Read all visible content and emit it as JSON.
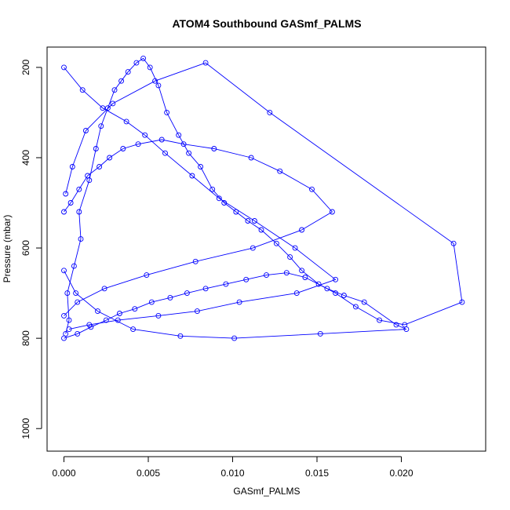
{
  "chart_data": {
    "type": "scatter",
    "title": "ATOM4 Southbound GASmf_PALMS",
    "xlabel": "GASmf_PALMS",
    "ylabel": "Pressure (mbar)",
    "xlim": [
      -0.001,
      0.025
    ],
    "ylim": [
      1050,
      155
    ],
    "y_reversed": true,
    "xticks": [
      0.0,
      0.005,
      0.01,
      0.015,
      0.02
    ],
    "xtick_labels": [
      "0.000",
      "0.005",
      "0.010",
      "0.015",
      "0.020"
    ],
    "yticks": [
      200,
      400,
      600,
      800,
      1000
    ],
    "ytick_labels": [
      "200",
      "400",
      "600",
      "800",
      "1000"
    ],
    "grid": false,
    "legend": "none",
    "marker": "open-circle",
    "connect_points": true,
    "color": "#0000ff",
    "series": [
      {
        "x": [
          0.0001,
          0.0003,
          0.0002,
          0.0006,
          0.001,
          0.0009,
          0.0015,
          0.0019,
          0.0022,
          0.0026,
          0.003,
          0.0034,
          0.0038,
          0.0043,
          0.0047,
          0.0051,
          0.0056,
          0.0061,
          0.0068,
          0.0074,
          0.0081,
          0.0088,
          0.0095,
          0.0102,
          0.0109,
          0.0117,
          0.0126,
          0.0134,
          0.0141,
          0.0151,
          0.0161,
          0.0173,
          0.0187,
          0.0202,
          0.0236,
          0.0231,
          0.0122,
          0.0084,
          0.0054,
          0.0029,
          0.0013,
          0.0005,
          0.0001
        ],
        "y": [
          790,
          760,
          700,
          640,
          580,
          520,
          450,
          380,
          330,
          290,
          250,
          230,
          210,
          190,
          180,
          200,
          240,
          300,
          350,
          390,
          420,
          470,
          500,
          520,
          540,
          560,
          590,
          620,
          650,
          680,
          700,
          730,
          760,
          770,
          720,
          590,
          300,
          190,
          230,
          280,
          340,
          420,
          480
        ]
      },
      {
        "x": [
          0.0,
          0.0008,
          0.0016,
          0.0025,
          0.0033,
          0.0042,
          0.0052,
          0.0063,
          0.0073,
          0.0084,
          0.0096,
          0.0108,
          0.012,
          0.0132,
          0.0143,
          0.0156,
          0.0166,
          0.0178,
          0.0197,
          0.0203,
          0.0152,
          0.0101,
          0.0069,
          0.0041,
          0.002,
          0.0007,
          0.0
        ],
        "y": [
          800,
          790,
          775,
          760,
          745,
          735,
          720,
          710,
          700,
          690,
          680,
          670,
          660,
          655,
          665,
          690,
          705,
          720,
          770,
          780,
          790,
          800,
          795,
          780,
          740,
          700,
          650
        ]
      },
      {
        "x": [
          0.0,
          0.0004,
          0.0009,
          0.0014,
          0.0021,
          0.0027,
          0.0035,
          0.0044,
          0.0058,
          0.0071,
          0.0089,
          0.0111,
          0.0128,
          0.0147,
          0.0159,
          0.0141,
          0.0112,
          0.0078,
          0.0049,
          0.0024,
          0.0008,
          0.0
        ],
        "y": [
          520,
          500,
          470,
          440,
          420,
          400,
          380,
          370,
          360,
          370,
          380,
          400,
          430,
          470,
          520,
          560,
          600,
          630,
          660,
          690,
          720,
          750
        ]
      },
      {
        "x": [
          0.0,
          0.0011,
          0.0023,
          0.0037,
          0.0048,
          0.006,
          0.0076,
          0.0092,
          0.0113,
          0.0137,
          0.0161,
          0.0138,
          0.0104,
          0.0079,
          0.0056,
          0.0032,
          0.0015,
          0.0003
        ],
        "y": [
          200,
          250,
          290,
          320,
          350,
          390,
          440,
          490,
          540,
          600,
          670,
          700,
          720,
          740,
          750,
          760,
          770,
          780
        ]
      }
    ]
  }
}
